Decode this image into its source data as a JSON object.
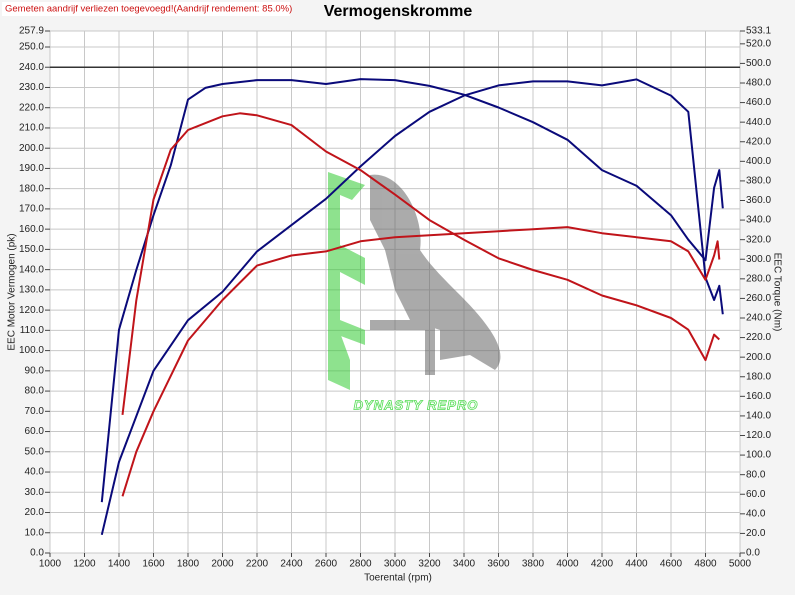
{
  "chart_data": {
    "type": "line",
    "title": "Vermogenskromme",
    "note": "Gemeten aandrijf verliezen toegevoegd!(Aandrijf rendement: 85.0%)",
    "watermark": "DYNASTY REPRO",
    "x_label": "Toerental (rpm)",
    "y_label": "EEC Motor Vermogen (pk)",
    "y2_label": "EEC Torque (Nm)",
    "grid": true,
    "reference_line": 240,
    "xlim": [
      1000,
      5000
    ],
    "xticks": [
      1000,
      1200,
      1400,
      1600,
      1800,
      2000,
      2200,
      2400,
      2600,
      2800,
      3000,
      3200,
      3400,
      3600,
      3800,
      4000,
      4200,
      4400,
      4600,
      4800,
      5000
    ],
    "ylim": [
      0,
      257.9
    ],
    "yticks": [
      {
        "value": 0,
        "label": "0.0"
      },
      {
        "value": 10,
        "label": "10.0"
      },
      {
        "value": 20,
        "label": "20.0"
      },
      {
        "value": 30,
        "label": "30.0"
      },
      {
        "value": 40,
        "label": "40.0"
      },
      {
        "value": 50,
        "label": "50.0"
      },
      {
        "value": 60,
        "label": "60.0"
      },
      {
        "value": 70,
        "label": "70.0"
      },
      {
        "value": 80,
        "label": "80.0"
      },
      {
        "value": 90,
        "label": "90.0"
      },
      {
        "value": 100,
        "label": "100.0"
      },
      {
        "value": 110,
        "label": "110.0"
      },
      {
        "value": 120,
        "label": "120.0"
      },
      {
        "value": 130,
        "label": "130.0"
      },
      {
        "value": 140,
        "label": "140.0"
      },
      {
        "value": 150,
        "label": "150.0"
      },
      {
        "value": 160,
        "label": "160.0"
      },
      {
        "value": 170,
        "label": "170.0"
      },
      {
        "value": 180,
        "label": "180.0"
      },
      {
        "value": 190,
        "label": "190.0"
      },
      {
        "value": 200,
        "label": "200.0"
      },
      {
        "value": 210,
        "label": "210.0"
      },
      {
        "value": 220,
        "label": "220.0"
      },
      {
        "value": 230,
        "label": "230.0"
      },
      {
        "value": 240,
        "label": "240.0"
      },
      {
        "value": 250,
        "label": "250.0"
      },
      257.9
    ],
    "y2lim": [
      0,
      533.1
    ],
    "y2ticks": [
      {
        "value": 0,
        "label": "0.0"
      },
      {
        "value": 20,
        "label": "20.0"
      },
      {
        "value": 40,
        "label": "40.0"
      },
      {
        "value": 60,
        "label": "60.0"
      },
      {
        "value": 80,
        "label": "80.0"
      },
      {
        "value": 100,
        "label": "100.0"
      },
      {
        "value": 120,
        "label": "120.0"
      },
      {
        "value": 140,
        "label": "140.0"
      },
      {
        "value": 160,
        "label": "160.0"
      },
      {
        "value": 180,
        "label": "180.0"
      },
      {
        "value": 200,
        "label": "200.0"
      },
      {
        "value": 220,
        "label": "220.0"
      },
      {
        "value": 240,
        "label": "240.0"
      },
      {
        "value": 260,
        "label": "260.0"
      },
      {
        "value": 280,
        "label": "280.0"
      },
      {
        "value": 300,
        "label": "300.0"
      },
      {
        "value": 320,
        "label": "320.0"
      },
      {
        "value": 340,
        "label": "340.0"
      },
      {
        "value": 360,
        "label": "360.0"
      },
      {
        "value": 380,
        "label": "380.0"
      },
      {
        "value": 400,
        "label": "400.0"
      },
      {
        "value": 420,
        "label": "420.0"
      },
      {
        "value": 440,
        "label": "440.0"
      },
      {
        "value": 460,
        "label": "460.0"
      },
      {
        "value": 480,
        "label": "480.0"
      },
      {
        "value": 500,
        "label": "500.0"
      },
      {
        "value": 520,
        "label": "520.0"
      },
      533.1
    ],
    "series": [
      {
        "color": "#0a0a7a",
        "x": [
          1300,
          1400,
          1600,
          1800,
          2000,
          2200,
          2400,
          2600,
          2800,
          3000,
          3200,
          3400,
          3600,
          3800,
          4000,
          4200,
          4400,
          4600,
          4700,
          4800,
          4850,
          4880,
          4900
        ],
        "values": [
          9,
          45,
          90,
          115,
          129,
          149,
          162,
          175,
          191,
          206,
          218,
          226,
          231,
          233,
          233,
          231,
          234,
          226,
          218,
          136,
          125,
          132,
          118
        ]
      },
      {
        "color": "#0a0a7a",
        "axis": "y2",
        "x": [
          1300,
          1400,
          1500,
          1600,
          1700,
          1800,
          1900,
          2000,
          2200,
          2400,
          2600,
          2800,
          3000,
          3200,
          3400,
          3600,
          3800,
          4000,
          4200,
          4400,
          4600,
          4700,
          4800,
          4850,
          4880,
          4900
        ],
        "values": [
          52,
          228,
          289,
          345,
          396,
          463,
          475,
          479,
          483,
          483,
          479,
          484,
          483,
          477,
          468,
          455,
          440,
          422,
          391,
          375,
          345,
          320,
          299,
          373,
          391,
          352
        ]
      },
      {
        "color": "#c0141a",
        "x": [
          1420,
          1500,
          1600,
          1800,
          2000,
          2200,
          2400,
          2600,
          2800,
          3000,
          3200,
          3400,
          3600,
          3800,
          4000,
          4200,
          4400,
          4600,
          4700,
          4800,
          4850,
          4870,
          4880
        ],
        "values": [
          28,
          50,
          70,
          105,
          125,
          142,
          147,
          149,
          154,
          156,
          157,
          158,
          159,
          160,
          161,
          158,
          156,
          154,
          149,
          135,
          147,
          154,
          145
        ]
      },
      {
        "color": "#c0141a",
        "axis": "y2",
        "x": [
          1420,
          1500,
          1600,
          1700,
          1800,
          2000,
          2100,
          2200,
          2400,
          2600,
          2800,
          3000,
          3200,
          3400,
          3600,
          3800,
          4000,
          4200,
          4400,
          4600,
          4700,
          4800,
          4850,
          4880
        ],
        "values": [
          141,
          258,
          361,
          412,
          432,
          446,
          449,
          447,
          437,
          410,
          391,
          366,
          340,
          320,
          301,
          289,
          279,
          263,
          253,
          240,
          228,
          197,
          223,
          218
        ]
      }
    ]
  }
}
